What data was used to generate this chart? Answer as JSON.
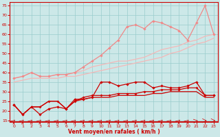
{
  "x": [
    0,
    1,
    2,
    3,
    4,
    5,
    6,
    7,
    8,
    9,
    10,
    11,
    12,
    13,
    14,
    15,
    16,
    17,
    18,
    19,
    20,
    21,
    22,
    23
  ],
  "line_light_upper": [
    37,
    38,
    40,
    38,
    38,
    39,
    39,
    40,
    41,
    43,
    44,
    45,
    46,
    46,
    47,
    48,
    50,
    52,
    53,
    54,
    56,
    57,
    59,
    60
  ],
  "line_light_peak": [
    37,
    38,
    40,
    38,
    38,
    39,
    39,
    40,
    43,
    46,
    49,
    53,
    57,
    64,
    65,
    63,
    67,
    66,
    64,
    62,
    57,
    66,
    75,
    60
  ],
  "line_light_lower": [
    35,
    36,
    37,
    37,
    37,
    37,
    38,
    38,
    39,
    40,
    41,
    42,
    43,
    44,
    45,
    46,
    47,
    48,
    50,
    51,
    53,
    55,
    56,
    58
  ],
  "line_dark_spiky": [
    23,
    18,
    22,
    18,
    21,
    22,
    21,
    26,
    26,
    27,
    35,
    35,
    33,
    34,
    35,
    35,
    32,
    33,
    32,
    32,
    33,
    35,
    28,
    28
  ],
  "line_dark_mid": [
    23,
    18,
    22,
    22,
    25,
    25,
    21,
    25,
    27,
    28,
    28,
    28,
    29,
    29,
    29,
    30,
    30,
    31,
    31,
    31,
    32,
    32,
    28,
    28
  ],
  "line_dark_low": [
    23,
    18,
    22,
    22,
    25,
    25,
    21,
    25,
    26,
    27,
    27,
    27,
    28,
    28,
    28,
    28,
    29,
    29,
    30,
    30,
    30,
    30,
    27,
    27
  ],
  "bg_color": "#cce8e8",
  "grid_color": "#99cccc",
  "lc_light1": "#f4b8b8",
  "lc_light2": "#f08888",
  "lc_dark": "#cc0000",
  "xlabel": "Vent moyen/en rafales ( km/h )",
  "ylim": [
    14,
    77
  ],
  "yticks": [
    15,
    20,
    25,
    30,
    35,
    40,
    45,
    50,
    55,
    60,
    65,
    70,
    75
  ],
  "xticks": [
    0,
    1,
    2,
    3,
    4,
    5,
    6,
    7,
    8,
    9,
    10,
    11,
    12,
    13,
    14,
    15,
    16,
    17,
    18,
    19,
    20,
    21,
    22,
    23
  ]
}
